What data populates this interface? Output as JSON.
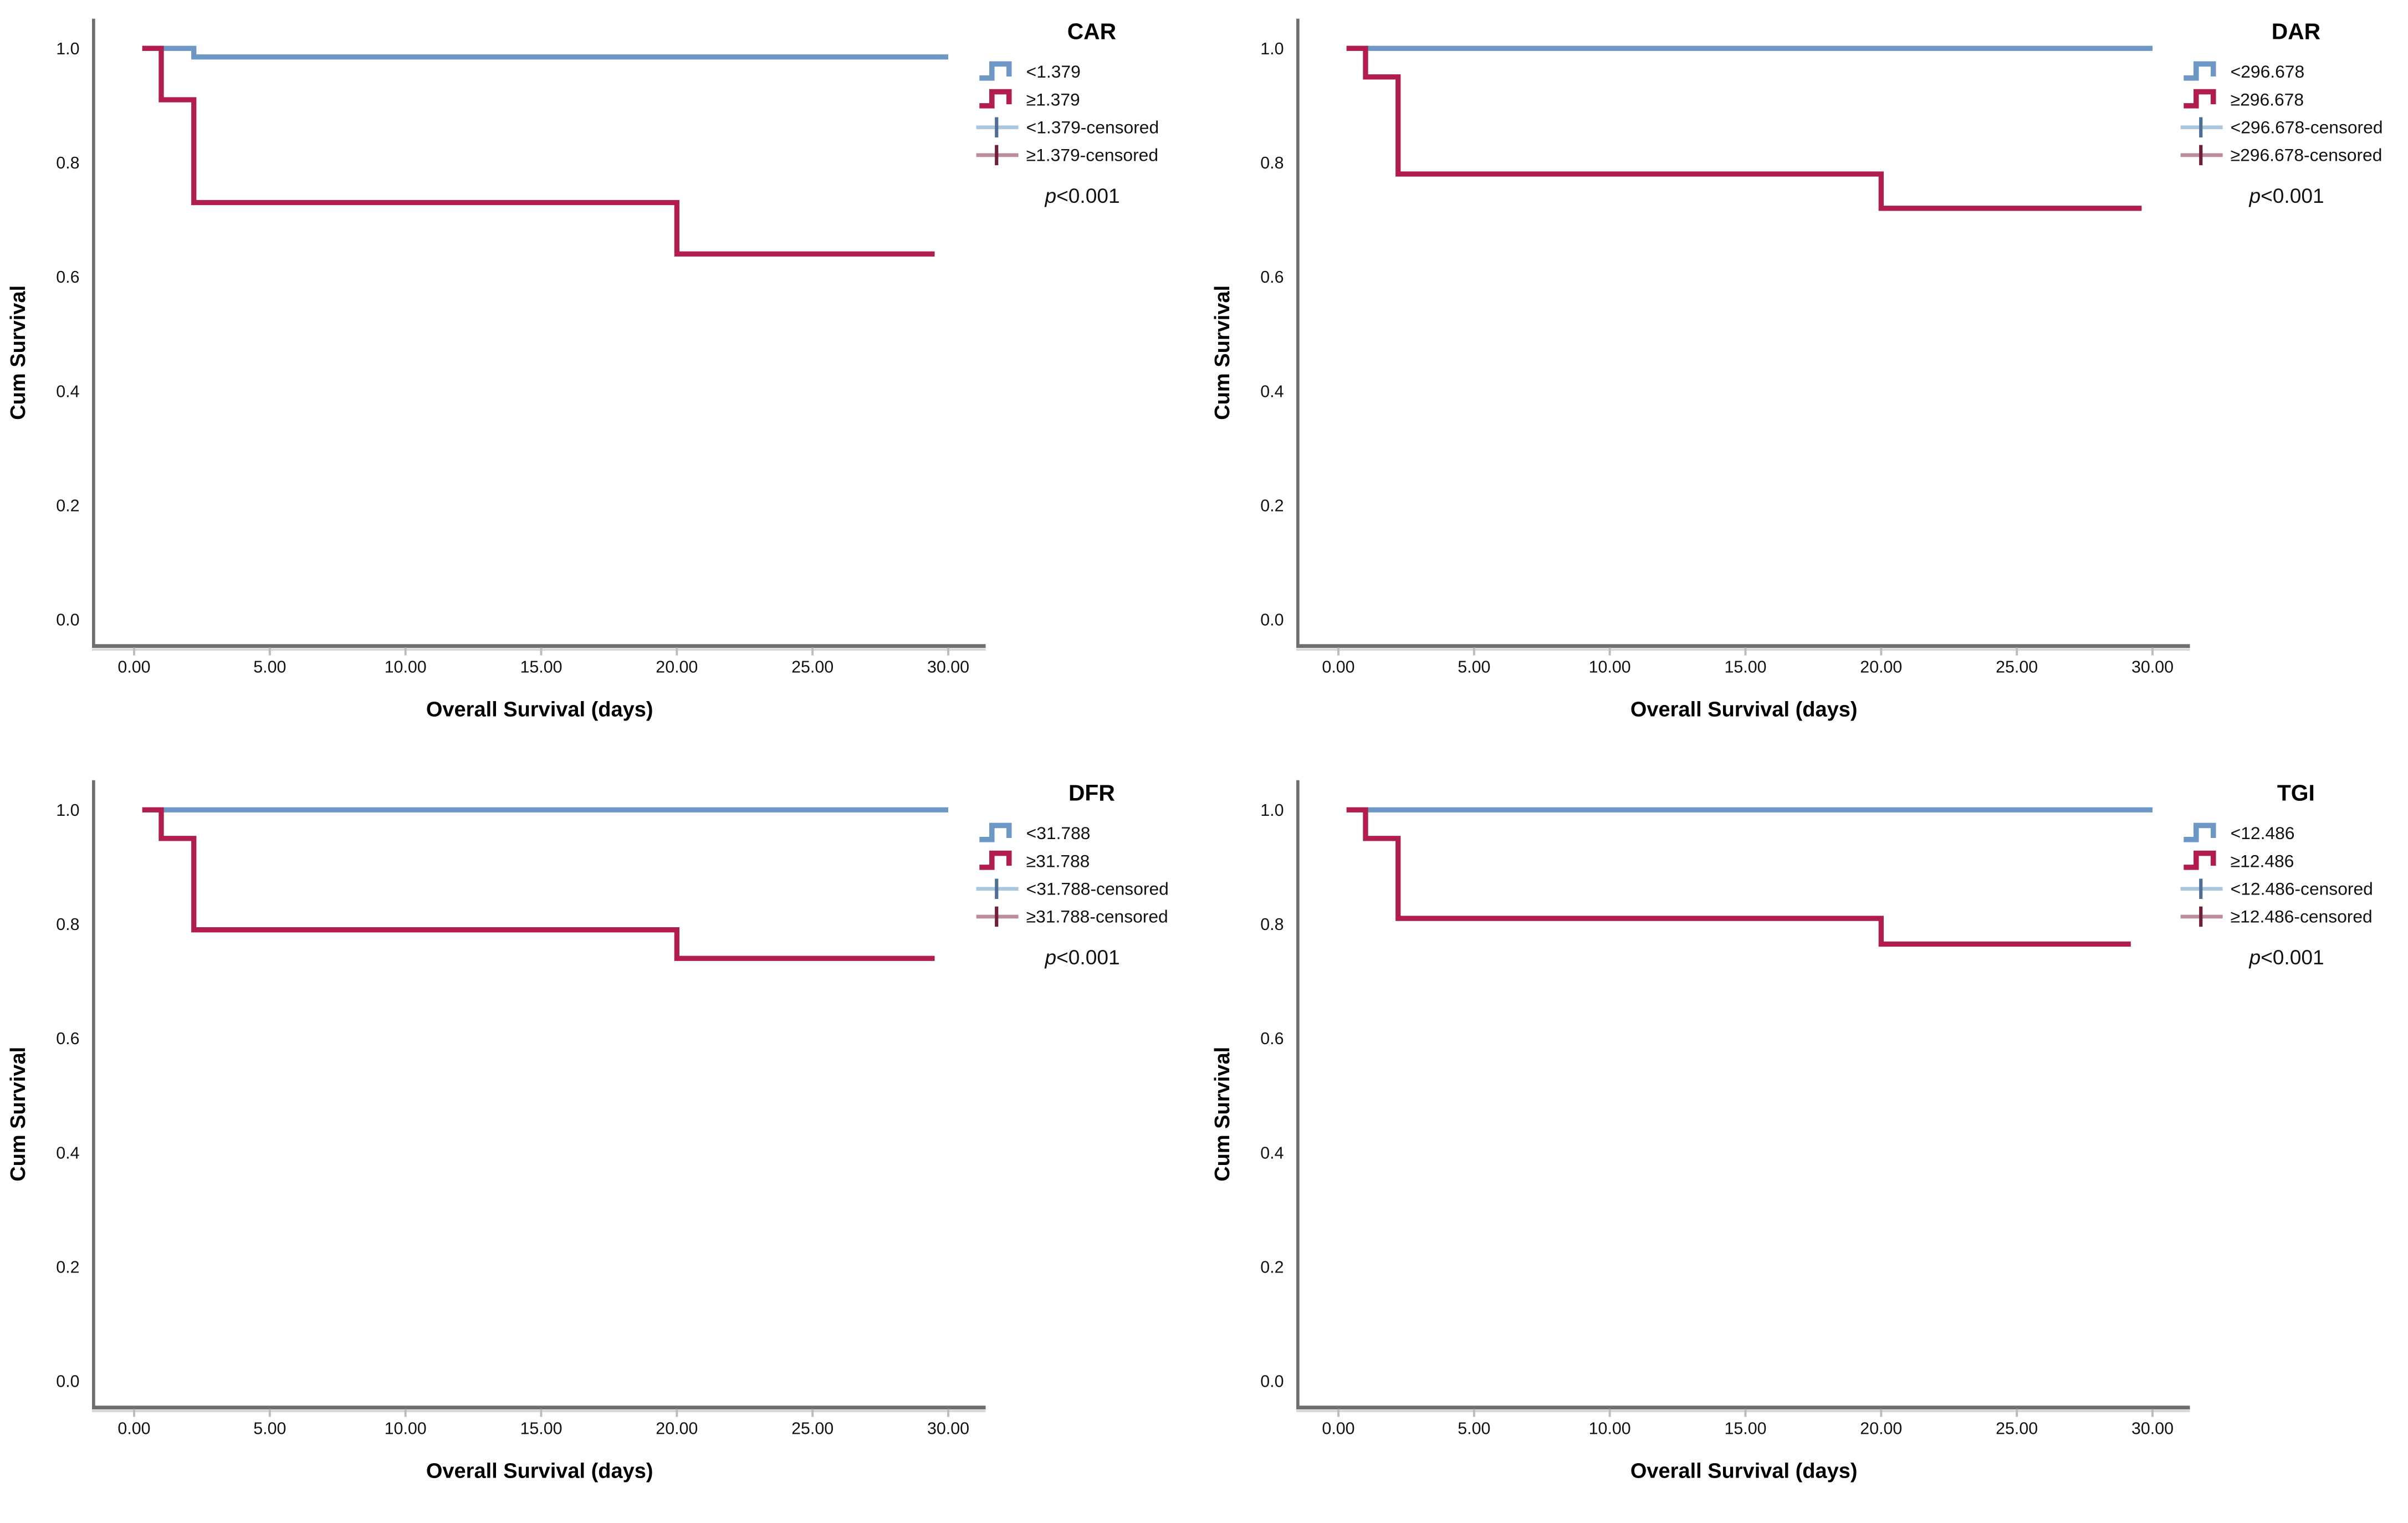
{
  "figure": {
    "background": "#ffffff",
    "layout": "2x2-grid",
    "panel_order": [
      "CAR",
      "DAR",
      "DFR",
      "TGI"
    ]
  },
  "style": {
    "curve_blue": "#6d98c6",
    "curve_red": "#b11e4e",
    "censored_blue_line": "#a9c8e0",
    "censored_blue_tick": "#4d6f93",
    "censored_red_line": "#bb8ba0",
    "censored_red_tick": "#6e1f3c",
    "axis_color": "#6e6e6e",
    "tick_mark_color": "#bcbcbc",
    "text_color": "#111111"
  },
  "chart_data": [
    {
      "type": "line",
      "subtype": "kaplan-meier-step",
      "title": "CAR",
      "xlabel": "Overall Survival (days)",
      "ylabel": "Cum Survival",
      "xlim": [
        0,
        32
      ],
      "ylim": [
        0,
        1.05
      ],
      "xticks": [
        0,
        5,
        10,
        15,
        20,
        25,
        30
      ],
      "xtick_labels": [
        "0.00",
        "5.00",
        "10.00",
        "15.00",
        "20.00",
        "25.00",
        "30.00"
      ],
      "yticks": [
        0.0,
        0.2,
        0.4,
        0.6,
        0.8,
        1.0
      ],
      "ytick_labels": [
        "0.0",
        "0.2",
        "0.4",
        "0.6",
        "0.8",
        "1.0"
      ],
      "grid": false,
      "legend_position": "right-top",
      "p_symbol": "p",
      "p_condition": "<0.001",
      "legend": [
        {
          "label": "<1.379",
          "swatch": "step",
          "color": "#6d98c6",
          "accent": "#6d98c6"
        },
        {
          "label": "≥1.379",
          "swatch": "step",
          "color": "#b11e4e",
          "accent": "#b11e4e"
        },
        {
          "label": "<1.379-censored",
          "swatch": "censored",
          "color": "#a9c8e0",
          "accent": "#4d6f93"
        },
        {
          "label": "≥1.379-censored",
          "swatch": "censored",
          "color": "#bb8ba0",
          "accent": "#6e1f3c"
        }
      ],
      "series": [
        {
          "name": "<1.379",
          "color": "#6d98c6",
          "points": [
            [
              0.3,
              1.0
            ],
            [
              2.2,
              1.0
            ],
            [
              2.2,
              0.985
            ],
            [
              30,
              0.985
            ]
          ]
        },
        {
          "name": "≥1.379",
          "color": "#b11e4e",
          "points": [
            [
              0.3,
              1.0
            ],
            [
              1.0,
              1.0
            ],
            [
              1.0,
              0.91
            ],
            [
              2.2,
              0.91
            ],
            [
              2.2,
              0.73
            ],
            [
              20,
              0.73
            ],
            [
              20,
              0.64
            ],
            [
              29.5,
              0.64
            ]
          ]
        }
      ]
    },
    {
      "type": "line",
      "subtype": "kaplan-meier-step",
      "title": "DAR",
      "xlabel": "Overall Survival (days)",
      "ylabel": "Cum Survival",
      "xlim": [
        0,
        32
      ],
      "ylim": [
        0,
        1.05
      ],
      "xticks": [
        0,
        5,
        10,
        15,
        20,
        25,
        30
      ],
      "xtick_labels": [
        "0.00",
        "5.00",
        "10.00",
        "15.00",
        "20.00",
        "25.00",
        "30.00"
      ],
      "yticks": [
        0.0,
        0.2,
        0.4,
        0.6,
        0.8,
        1.0
      ],
      "ytick_labels": [
        "0.0",
        "0.2",
        "0.4",
        "0.6",
        "0.8",
        "1.0"
      ],
      "grid": false,
      "legend_position": "right-top",
      "p_symbol": "p",
      "p_condition": "<0.001",
      "legend": [
        {
          "label": "<296.678",
          "swatch": "step",
          "color": "#6d98c6",
          "accent": "#6d98c6"
        },
        {
          "label": "≥296.678",
          "swatch": "step",
          "color": "#b11e4e",
          "accent": "#b11e4e"
        },
        {
          "label": "<296.678-censored",
          "swatch": "censored",
          "color": "#a9c8e0",
          "accent": "#4d6f93"
        },
        {
          "label": "≥296.678-censored",
          "swatch": "censored",
          "color": "#bb8ba0",
          "accent": "#6e1f3c"
        }
      ],
      "series": [
        {
          "name": "<296.678",
          "color": "#6d98c6",
          "points": [
            [
              0.3,
              1.0
            ],
            [
              30,
              1.0
            ]
          ]
        },
        {
          "name": "≥296.678",
          "color": "#b11e4e",
          "points": [
            [
              0.3,
              1.0
            ],
            [
              1.0,
              1.0
            ],
            [
              1.0,
              0.95
            ],
            [
              2.2,
              0.95
            ],
            [
              2.2,
              0.78
            ],
            [
              20,
              0.78
            ],
            [
              20,
              0.72
            ],
            [
              29.6,
              0.72
            ]
          ]
        }
      ]
    },
    {
      "type": "line",
      "subtype": "kaplan-meier-step",
      "title": "DFR",
      "xlabel": "Overall Survival (days)",
      "ylabel": "Cum Survival",
      "xlim": [
        0,
        32
      ],
      "ylim": [
        0,
        1.05
      ],
      "xticks": [
        0,
        5,
        10,
        15,
        20,
        25,
        30
      ],
      "xtick_labels": [
        "0.00",
        "5.00",
        "10.00",
        "15.00",
        "20.00",
        "25.00",
        "30.00"
      ],
      "yticks": [
        0.0,
        0.2,
        0.4,
        0.6,
        0.8,
        1.0
      ],
      "ytick_labels": [
        "0.0",
        "0.2",
        "0.4",
        "0.6",
        "0.8",
        "1.0"
      ],
      "grid": false,
      "legend_position": "right-top",
      "p_symbol": "p",
      "p_condition": "<0.001",
      "legend": [
        {
          "label": "<31.788",
          "swatch": "step",
          "color": "#6d98c6",
          "accent": "#6d98c6"
        },
        {
          "label": "≥31.788",
          "swatch": "step",
          "color": "#b11e4e",
          "accent": "#b11e4e"
        },
        {
          "label": "<31.788-censored",
          "swatch": "censored",
          "color": "#a9c8e0",
          "accent": "#4d6f93"
        },
        {
          "label": "≥31.788-censored",
          "swatch": "censored",
          "color": "#bb8ba0",
          "accent": "#6e1f3c"
        }
      ],
      "series": [
        {
          "name": "<31.788",
          "color": "#6d98c6",
          "points": [
            [
              0.3,
              1.0
            ],
            [
              30,
              1.0
            ]
          ]
        },
        {
          "name": "≥31.788",
          "color": "#b11e4e",
          "points": [
            [
              0.3,
              1.0
            ],
            [
              1.0,
              1.0
            ],
            [
              1.0,
              0.95
            ],
            [
              2.2,
              0.95
            ],
            [
              2.2,
              0.79
            ],
            [
              20,
              0.79
            ],
            [
              20,
              0.74
            ],
            [
              29.5,
              0.74
            ]
          ]
        }
      ]
    },
    {
      "type": "line",
      "subtype": "kaplan-meier-step",
      "title": "TGI",
      "xlabel": "Overall Survival (days)",
      "ylabel": "Cum Survival",
      "xlim": [
        0,
        32
      ],
      "ylim": [
        0,
        1.05
      ],
      "xticks": [
        0,
        5,
        10,
        15,
        20,
        25,
        30
      ],
      "xtick_labels": [
        "0.00",
        "5.00",
        "10.00",
        "15.00",
        "20.00",
        "25.00",
        "30.00"
      ],
      "yticks": [
        0.0,
        0.2,
        0.4,
        0.6,
        0.8,
        1.0
      ],
      "ytick_labels": [
        "0.0",
        "0.2",
        "0.4",
        "0.6",
        "0.8",
        "1.0"
      ],
      "grid": false,
      "legend_position": "right-top",
      "p_symbol": "p",
      "p_condition": "<0.001",
      "legend": [
        {
          "label": "<12.486",
          "swatch": "step",
          "color": "#6d98c6",
          "accent": "#6d98c6"
        },
        {
          "label": "≥12.486",
          "swatch": "step",
          "color": "#b11e4e",
          "accent": "#b11e4e"
        },
        {
          "label": "<12.486-censored",
          "swatch": "censored",
          "color": "#a9c8e0",
          "accent": "#4d6f93"
        },
        {
          "label": "≥12.486-censored",
          "swatch": "censored",
          "color": "#bb8ba0",
          "accent": "#6e1f3c"
        }
      ],
      "series": [
        {
          "name": "<12.486",
          "color": "#6d98c6",
          "points": [
            [
              0.3,
              1.0
            ],
            [
              30,
              1.0
            ]
          ]
        },
        {
          "name": "≥12.486",
          "color": "#b11e4e",
          "points": [
            [
              0.3,
              1.0
            ],
            [
              1.0,
              1.0
            ],
            [
              1.0,
              0.95
            ],
            [
              2.2,
              0.95
            ],
            [
              2.2,
              0.81
            ],
            [
              20,
              0.81
            ],
            [
              20,
              0.765
            ],
            [
              29.2,
              0.765
            ]
          ]
        }
      ]
    }
  ]
}
